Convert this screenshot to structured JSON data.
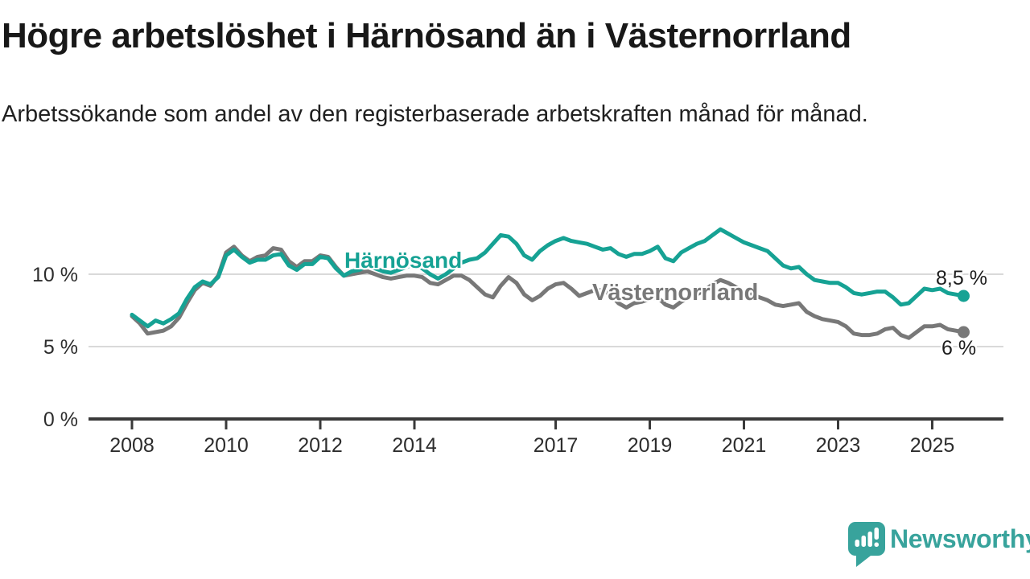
{
  "header": {
    "title": "Högre arbetslöshet i Härnösand än i Västernorrland",
    "subtitle": "Arbetssökande som andel av den registerbaserade arbetskraften månad för månad."
  },
  "chart_data": {
    "type": "line",
    "title": "Högre arbetslöshet i Härnösand än i Västernorrland",
    "subtitle": "Arbetssökande som andel av den registerbaserade arbetskraften månad för månad.",
    "y_unit": "%",
    "grid": "horizontal",
    "legend_position": "inline-labels-on-lines",
    "x_start_year": 2008,
    "x_step_months": 2,
    "x_end": "2025 (late summer)",
    "ylim": [
      0,
      14.5
    ],
    "x_ticks": [
      {
        "year": 2008,
        "label": "2008"
      },
      {
        "year": 2010,
        "label": "2010"
      },
      {
        "year": 2012,
        "label": "2012"
      },
      {
        "year": 2014,
        "label": "2014"
      },
      {
        "year": 2017,
        "label": "2017"
      },
      {
        "year": 2019,
        "label": "2019"
      },
      {
        "year": 2021,
        "label": "2021"
      },
      {
        "year": 2023,
        "label": "2023"
      },
      {
        "year": 2025,
        "label": "2025"
      }
    ],
    "y_ticks": [
      {
        "value": 0,
        "label": "0 %"
      },
      {
        "value": 5,
        "label": "5 %"
      },
      {
        "value": 10,
        "label": "10 %"
      }
    ],
    "series": [
      {
        "name": "Härnösand",
        "color": "#16a294",
        "end_label": "8,5 %",
        "end_value": 8.5,
        "values": [
          7.2,
          6.8,
          6.4,
          6.8,
          6.6,
          6.9,
          7.3,
          8.3,
          9.1,
          9.5,
          9.3,
          9.8,
          11.3,
          11.7,
          11.2,
          10.8,
          11.0,
          11.0,
          11.3,
          11.4,
          10.6,
          10.3,
          10.7,
          10.7,
          11.2,
          11.1,
          10.4,
          9.9,
          10.2,
          10.3,
          10.6,
          10.4,
          10.2,
          10.1,
          10.3,
          10.5,
          10.7,
          10.4,
          10.0,
          9.7,
          10.0,
          10.4,
          10.8,
          11.0,
          11.1,
          11.5,
          12.1,
          12.7,
          12.6,
          12.1,
          11.3,
          11.0,
          11.6,
          12.0,
          12.3,
          12.5,
          12.3,
          12.2,
          12.1,
          11.9,
          11.7,
          11.8,
          11.4,
          11.2,
          11.4,
          11.4,
          11.6,
          11.9,
          11.1,
          10.9,
          11.5,
          11.8,
          12.1,
          12.3,
          12.7,
          13.1,
          12.8,
          12.5,
          12.2,
          12.0,
          11.8,
          11.6,
          11.1,
          10.6,
          10.4,
          10.5,
          10.0,
          9.6,
          9.5,
          9.4,
          9.4,
          9.1,
          8.7,
          8.6,
          8.7,
          8.8,
          8.8,
          8.4,
          7.9,
          8.0,
          8.5,
          9.0,
          8.9,
          9.0,
          8.7,
          8.6,
          8.5
        ]
      },
      {
        "name": "Västernorrland",
        "color": "#787878",
        "end_label": "6 %",
        "end_value": 6.0,
        "values": [
          7.1,
          6.6,
          5.9,
          6.0,
          6.1,
          6.4,
          7.0,
          8.0,
          8.9,
          9.4,
          9.2,
          9.9,
          11.5,
          11.9,
          11.3,
          10.9,
          11.2,
          11.3,
          11.8,
          11.7,
          10.9,
          10.5,
          10.9,
          10.9,
          11.3,
          11.2,
          10.5,
          9.9,
          10.0,
          10.1,
          10.2,
          10.0,
          9.8,
          9.7,
          9.8,
          9.9,
          9.9,
          9.8,
          9.4,
          9.3,
          9.6,
          9.9,
          9.9,
          9.6,
          9.1,
          8.6,
          8.4,
          9.2,
          9.8,
          9.4,
          8.6,
          8.2,
          8.5,
          9.0,
          9.3,
          9.4,
          9.0,
          8.5,
          8.7,
          8.9,
          8.9,
          8.6,
          8.0,
          7.7,
          8.0,
          8.1,
          8.3,
          8.4,
          7.9,
          7.7,
          8.1,
          8.4,
          8.6,
          8.9,
          9.3,
          9.6,
          9.4,
          9.1,
          8.8,
          8.6,
          8.4,
          8.2,
          7.9,
          7.8,
          7.9,
          8.0,
          7.4,
          7.1,
          6.9,
          6.8,
          6.7,
          6.4,
          5.9,
          5.8,
          5.8,
          5.9,
          6.2,
          6.3,
          5.8,
          5.6,
          6.0,
          6.4,
          6.4,
          6.5,
          6.2,
          6.1,
          6.0
        ]
      }
    ],
    "style": {
      "gridline_color": "#d9d9d9",
      "axis_color": "#3a3a3a",
      "tick_label_color": "#2d2d2d"
    }
  },
  "branding": {
    "wordmark": "Newsworthy",
    "logo_icon": "newsworthy-speech-bubble-bar-chart-icon",
    "brand_color": "#38a39c"
  }
}
